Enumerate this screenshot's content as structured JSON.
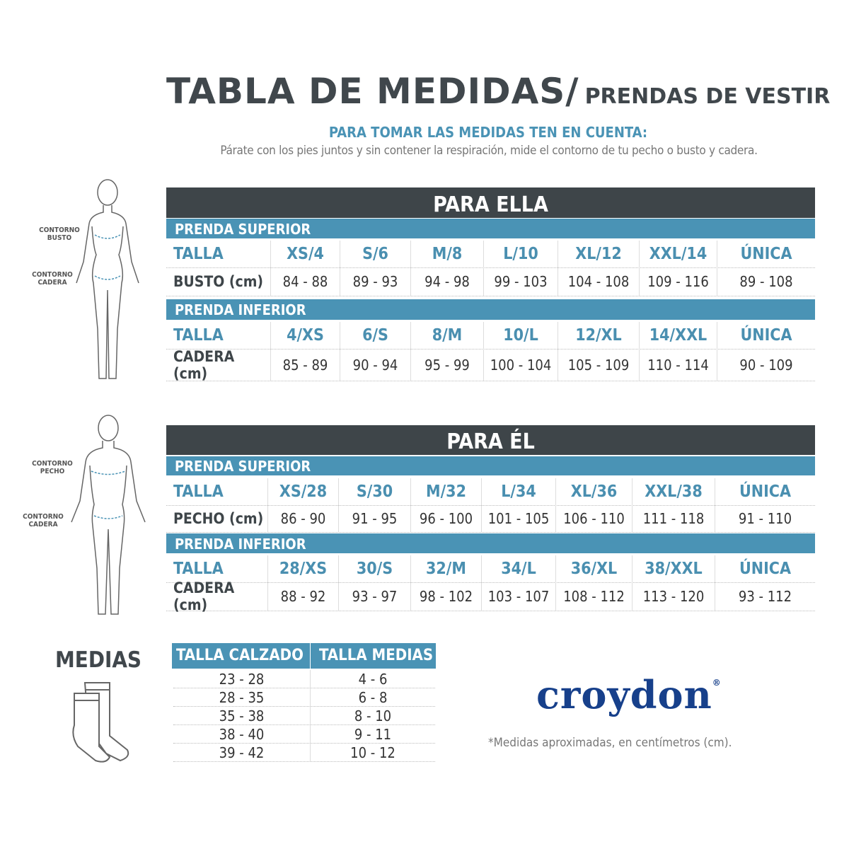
{
  "header": {
    "title": "TABLA DE MEDIDAS/",
    "subtitle": "PRENDAS DE VESTIR",
    "instructions_title": "PARA TOMAR LAS MEDIDAS TEN EN CUENTA:",
    "instructions": "Párate con los pies juntos y sin contener la respiración, mide el contorno de tu pecho o busto y cadera."
  },
  "colors": {
    "dark": "#3e4549",
    "accent": "#4a93b5",
    "brand": "#17408b"
  },
  "ella": {
    "title": "PARA ELLA",
    "figure_labels": [
      "CONTORNO BUSTO",
      "CONTORNO CADERA"
    ],
    "superior": {
      "band": "PRENDA SUPERIOR",
      "talla_label": "TALLA",
      "sizes": [
        "XS/4",
        "S/6",
        "M/8",
        "L/10",
        "XL/12",
        "XXL/14",
        "ÚNICA"
      ],
      "measure_label": "BUSTO (cm)",
      "values": [
        "84 - 88",
        "89 - 93",
        "94 - 98",
        "99 - 103",
        "104 - 108",
        "109 - 116",
        "89 - 108"
      ]
    },
    "inferior": {
      "band": "PRENDA INFERIOR",
      "talla_label": "TALLA",
      "sizes": [
        "4/XS",
        "6/S",
        "8/M",
        "10/L",
        "12/XL",
        "14/XXL",
        "ÚNICA"
      ],
      "measure_label": "CADERA (cm)",
      "values": [
        "85 - 89",
        "90 - 94",
        "95 - 99",
        "100 - 104",
        "105 - 109",
        "110 - 114",
        "90 - 109"
      ]
    }
  },
  "el": {
    "title": "PARA ÉL",
    "figure_labels": [
      "CONTORNO PECHO",
      "CONTORNO CADERA"
    ],
    "superior": {
      "band": "PRENDA SUPERIOR",
      "talla_label": "TALLA",
      "sizes": [
        "XS/28",
        "S/30",
        "M/32",
        "L/34",
        "XL/36",
        "XXL/38",
        "ÚNICA"
      ],
      "measure_label": "PECHO (cm)",
      "values": [
        "86 - 90",
        "91 - 95",
        "96 - 100",
        "101 - 105",
        "106 - 110",
        "111 - 118",
        "91 - 110"
      ]
    },
    "inferior": {
      "band": "PRENDA INFERIOR",
      "talla_label": "TALLA",
      "sizes": [
        "28/XS",
        "30/S",
        "32/M",
        "34/L",
        "36/XL",
        "38/XXL",
        "ÚNICA"
      ],
      "measure_label": "CADERA (cm)",
      "values": [
        "88 - 92",
        "93 - 97",
        "98 - 102",
        "103 - 107",
        "108 - 112",
        "113 - 120",
        "93 - 112"
      ]
    }
  },
  "medias": {
    "title": "MEDIAS",
    "headers": [
      "TALLA CALZADO",
      "TALLA MEDIAS"
    ],
    "rows": [
      [
        "23 - 28",
        "4 - 6"
      ],
      [
        "28 - 35",
        "6 - 8"
      ],
      [
        "35 - 38",
        "8 - 10"
      ],
      [
        "38 - 40",
        "9 - 11"
      ],
      [
        "39 - 42",
        "10 - 12"
      ]
    ]
  },
  "brand": {
    "logo": "croydon",
    "registered": "®"
  },
  "footnote": "*Medidas aproximadas, en centímetros (cm)."
}
